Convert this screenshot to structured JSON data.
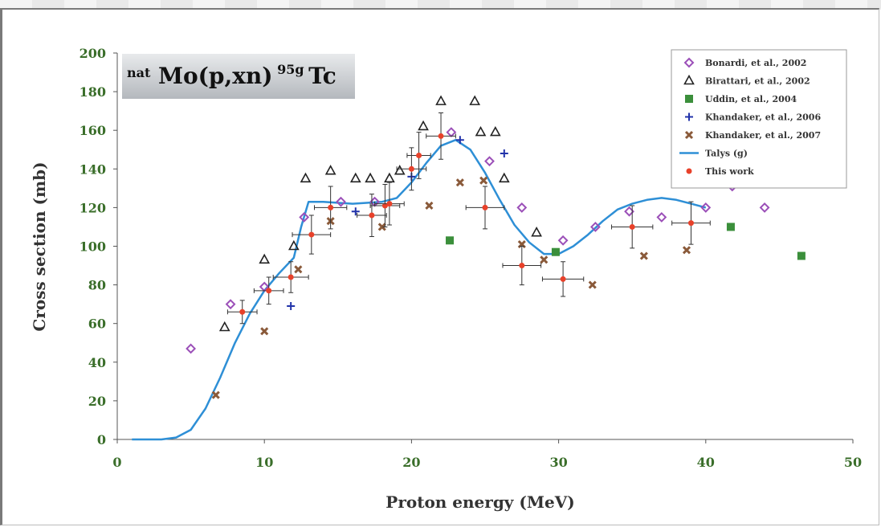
{
  "chart_data": {
    "type": "scatter",
    "title": "natMo(p,xn)95gTc",
    "title_parts": {
      "pre": "nat",
      "main": "Mo(p,xn)",
      "sup": "95g",
      "post": "Tc"
    },
    "xlabel": "Proton energy (MeV)",
    "ylabel": "Cross section (mb)",
    "xlim": [
      0,
      50
    ],
    "ylim": [
      0,
      200
    ],
    "xticks": [
      "0",
      "10",
      "20",
      "30",
      "40",
      "50"
    ],
    "yticks": [
      "0",
      "20",
      "40",
      "60",
      "80",
      "100",
      "120",
      "140",
      "160",
      "180",
      "200"
    ],
    "grid": false,
    "legend_position": "top-right",
    "series": [
      {
        "name": "Bonardi, et al., 2002",
        "marker": "diamond-open",
        "color": "#9b4fb8",
        "x": [
          5.0,
          7.7,
          10.0,
          12.7,
          15.2,
          17.5,
          22.7,
          25.3,
          27.5,
          30.3,
          32.5,
          34.8,
          37.0,
          40.0,
          41.8,
          44.0
        ],
        "y": [
          47,
          70,
          79,
          115,
          123,
          123,
          159,
          144,
          120,
          103,
          110,
          118,
          115,
          120,
          131,
          120
        ]
      },
      {
        "name": "Birattari, et al., 2002",
        "marker": "triangle-open",
        "color": "#222222",
        "x": [
          7.3,
          10.0,
          12.0,
          12.8,
          14.5,
          16.2,
          17.2,
          18.5,
          19.2,
          20.8,
          22.0,
          24.3,
          24.7,
          25.7,
          26.3,
          28.5
        ],
        "y": [
          58,
          93,
          100,
          135,
          139,
          135,
          135,
          135,
          139,
          162,
          175,
          175,
          159,
          159,
          135,
          107
        ]
      },
      {
        "name": "Uddin, et al., 2004",
        "marker": "square-filled",
        "color": "#3b8f3b",
        "x": [
          22.6,
          29.8,
          41.7,
          46.5
        ],
        "y": [
          103,
          97,
          110,
          95
        ]
      },
      {
        "name": "Khandaker, et al., 2006",
        "marker": "plus",
        "color": "#2233aa",
        "x": [
          11.8,
          16.2,
          20.0,
          23.3,
          26.3
        ],
        "y": [
          69,
          118,
          136,
          155,
          148
        ]
      },
      {
        "name": "Khandaker, et al., 2007",
        "marker": "x-bold",
        "color": "#8a5a3a",
        "x": [
          6.7,
          10.0,
          12.3,
          14.5,
          18.0,
          21.2,
          23.3,
          24.9,
          27.5,
          29.0,
          32.3,
          35.8,
          38.7
        ],
        "y": [
          23,
          56,
          88,
          113,
          110,
          121,
          133,
          134,
          101,
          93,
          80,
          95,
          98
        ]
      },
      {
        "name": "Talys (g)",
        "marker": "line",
        "color": "#2e8fd6",
        "x": [
          1.0,
          3.0,
          4.0,
          5.0,
          6.0,
          7.0,
          8.0,
          9.0,
          10.0,
          11.0,
          12.0,
          12.5,
          13.0,
          14.0,
          16.0,
          18.0,
          19.0,
          20.0,
          21.0,
          22.0,
          23.0,
          24.0,
          25.0,
          26.0,
          27.0,
          28.0,
          29.0,
          30.0,
          31.0,
          32.0,
          33.0,
          34.0,
          35.0,
          36.0,
          37.0,
          38.0,
          39.0,
          40.0
        ],
        "y": [
          0,
          0,
          1,
          5,
          16,
          32,
          50,
          65,
          77,
          86,
          94,
          110,
          123,
          123,
          122,
          123,
          125,
          133,
          143,
          152,
          155,
          150,
          138,
          124,
          111,
          102,
          96,
          96,
          100,
          106,
          113,
          119,
          122,
          124,
          125,
          124,
          122,
          120
        ]
      },
      {
        "name": "This work",
        "marker": "dot-errorbar",
        "color": "#e8412a",
        "x": [
          8.5,
          10.3,
          11.8,
          13.2,
          14.5,
          17.3,
          18.2,
          18.5,
          20.0,
          20.5,
          22.0,
          25.0,
          27.5,
          30.3,
          35.0,
          39.0
        ],
        "y": [
          66,
          77,
          84,
          106,
          120,
          116,
          121,
          122,
          140,
          147,
          157,
          120,
          90,
          83,
          110,
          112
        ],
        "xerr": [
          1.0,
          1.0,
          1.2,
          1.3,
          1.1,
          1.0,
          1.0,
          1.0,
          1.0,
          0.8,
          1.0,
          1.3,
          1.3,
          1.4,
          1.4,
          1.3
        ],
        "yerr": [
          6,
          7,
          8,
          10,
          11,
          11,
          11,
          11,
          11,
          12,
          12,
          11,
          10,
          9,
          11,
          11
        ]
      }
    ]
  }
}
